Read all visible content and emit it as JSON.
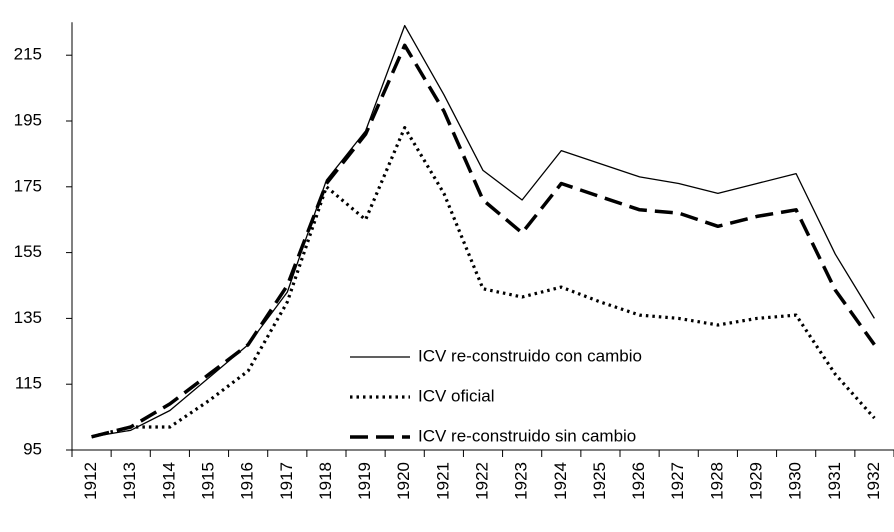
{
  "chart_data": {
    "type": "line",
    "categories": [
      "1912",
      "1913",
      "1914",
      "1915",
      "1916",
      "1917",
      "1918",
      "1919",
      "1920",
      "1921",
      "1922",
      "1923",
      "1924",
      "1925",
      "1926",
      "1927",
      "1928",
      "1929",
      "1930",
      "1931",
      "1932"
    ],
    "series": [
      {
        "name": "ICV re-construido con cambio",
        "color": "#000000",
        "style": "solid",
        "values": [
          99,
          101,
          107,
          117,
          127,
          143,
          177,
          192,
          224,
          203,
          180,
          171,
          186,
          182,
          178,
          176,
          173,
          176,
          179,
          154.5,
          135
        ]
      },
      {
        "name": "ICV oficial",
        "color": "#000000",
        "style": "dotted",
        "values": [
          99,
          102,
          102,
          110,
          119,
          140,
          175,
          165,
          193,
          173,
          144,
          141.5,
          144.5,
          140,
          136,
          135,
          133,
          135,
          136,
          118,
          104.7
        ]
      },
      {
        "name": "ICV re-construido sin cambio",
        "color": "#000000",
        "style": "dashed",
        "values": [
          99,
          102,
          109,
          118,
          127,
          145,
          176,
          191,
          218,
          198,
          171,
          161,
          176,
          172,
          168,
          167,
          163,
          166,
          168,
          143.6,
          127
        ]
      }
    ],
    "ylim": [
      95,
      225
    ],
    "yticks": [
      95,
      115,
      135,
      155,
      175,
      195,
      215
    ]
  }
}
